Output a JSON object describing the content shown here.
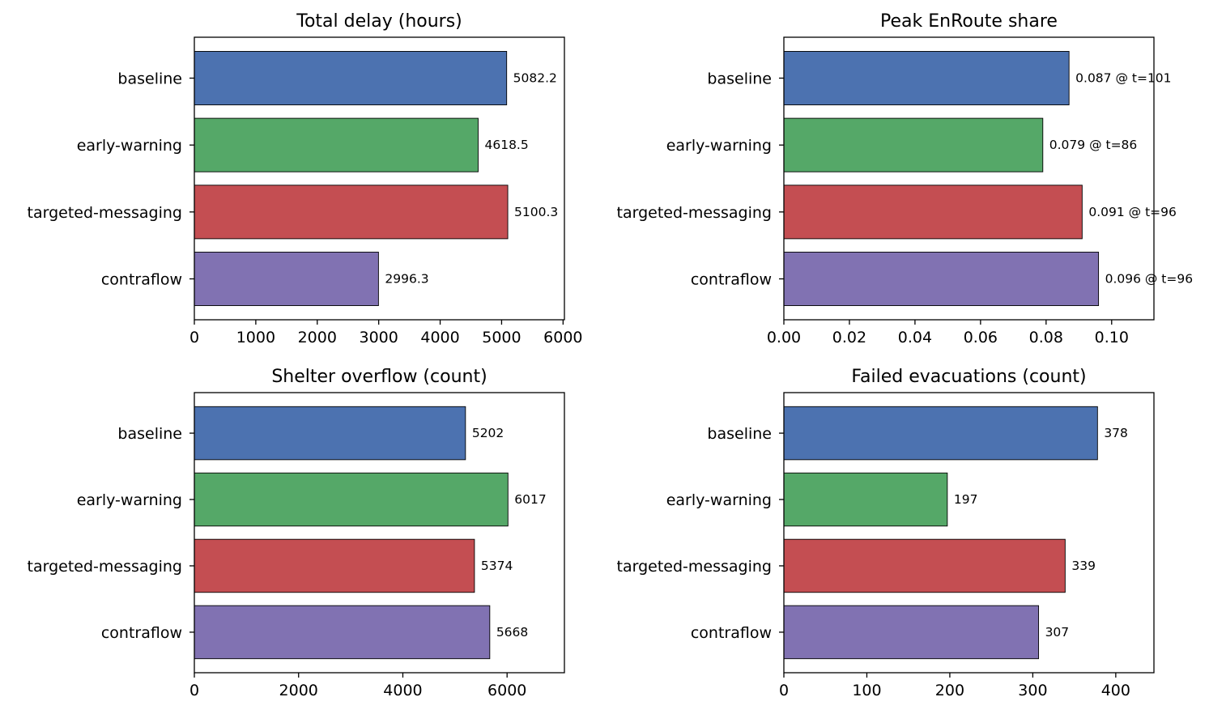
{
  "chart_data": [
    {
      "type": "bar",
      "orientation": "horizontal",
      "title": "Total delay (hours)",
      "categories": [
        "baseline",
        "early-warning",
        "targeted-messaging",
        "contraflow"
      ],
      "values": [
        5082.2,
        4618.5,
        5100.3,
        2996.3
      ],
      "value_labels": [
        "5082.2",
        "4618.5",
        "5100.3",
        "2996.3"
      ],
      "colors": [
        "#4c72b0",
        "#55a868",
        "#c44e52",
        "#8172b2"
      ],
      "xlim": [
        0,
        6022
      ],
      "xticks": [
        0,
        1000,
        2000,
        3000,
        4000,
        5000,
        6000
      ],
      "xtick_labels": [
        "0",
        "1000",
        "2000",
        "3000",
        "4000",
        "5000",
        "6000"
      ],
      "xlabel": "",
      "ylabel": "",
      "grid": false
    },
    {
      "type": "bar",
      "orientation": "horizontal",
      "title": "Peak EnRoute share",
      "categories": [
        "baseline",
        "early-warning",
        "targeted-messaging",
        "contraflow"
      ],
      "values": [
        0.087,
        0.079,
        0.091,
        0.096
      ],
      "value_labels": [
        "0.087 @ t=101",
        "0.079 @ t=86",
        "0.091 @ t=96",
        "0.096 @ t=96"
      ],
      "colors": [
        "#4c72b0",
        "#55a868",
        "#c44e52",
        "#8172b2"
      ],
      "xlim": [
        0,
        0.1129
      ],
      "xticks": [
        0,
        0.02,
        0.04,
        0.06,
        0.08,
        0.1
      ],
      "xtick_labels": [
        "0.00",
        "0.02",
        "0.04",
        "0.06",
        "0.08",
        "0.10"
      ],
      "xlabel": "",
      "ylabel": "",
      "grid": false
    },
    {
      "type": "bar",
      "orientation": "horizontal",
      "title": "Shelter overflow (count)",
      "categories": [
        "baseline",
        "early-warning",
        "targeted-messaging",
        "contraflow"
      ],
      "values": [
        5202,
        6017,
        5374,
        5668
      ],
      "value_labels": [
        "5202",
        "6017",
        "5374",
        "5668"
      ],
      "colors": [
        "#4c72b0",
        "#55a868",
        "#c44e52",
        "#8172b2"
      ],
      "xlim": [
        0,
        7100
      ],
      "xticks": [
        0,
        2000,
        4000,
        6000
      ],
      "xtick_labels": [
        "0",
        "2000",
        "4000",
        "6000"
      ],
      "xlabel": "",
      "ylabel": "",
      "grid": false
    },
    {
      "type": "bar",
      "orientation": "horizontal",
      "title": "Failed evacuations (count)",
      "categories": [
        "baseline",
        "early-warning",
        "targeted-messaging",
        "contraflow"
      ],
      "values": [
        378,
        197,
        339,
        307
      ],
      "value_labels": [
        "378",
        "197",
        "339",
        "307"
      ],
      "colors": [
        "#4c72b0",
        "#55a868",
        "#c44e52",
        "#8172b2"
      ],
      "xlim": [
        0,
        446
      ],
      "xticks": [
        0,
        100,
        200,
        300,
        400
      ],
      "xtick_labels": [
        "0",
        "100",
        "200",
        "300",
        "400"
      ],
      "xlabel": "",
      "ylabel": "",
      "grid": false
    }
  ]
}
